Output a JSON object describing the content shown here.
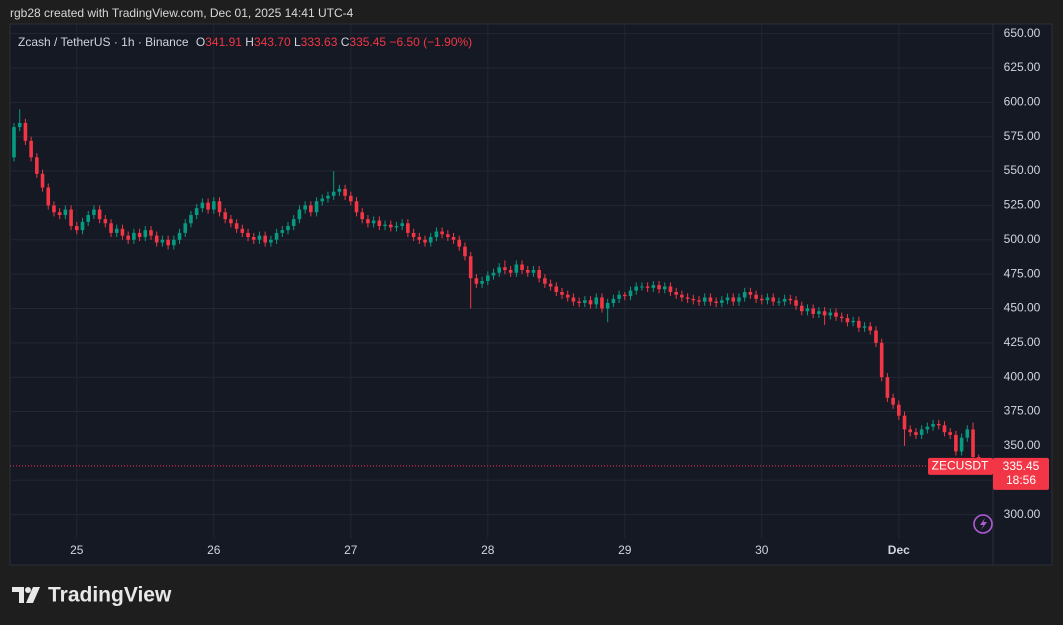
{
  "header": {
    "text": "rgb28 created with TradingView.com, Dec 01, 2025 14:41 UTC-4"
  },
  "chart_data": {
    "type": "candlestick",
    "symbol": "Zcash / TetherUS · 1h · Binance",
    "legend": {
      "o_label": "O",
      "o": "341.91",
      "h_label": "H",
      "h": "343.70",
      "l_label": "L",
      "l": "333.63",
      "c_label": "C",
      "c": "335.45",
      "change": "−6.50 (−1.90%)"
    },
    "ticker": "ZECUSDT",
    "last_price_label": "335.45",
    "countdown": "18:56",
    "up_color": "#089981",
    "down_color": "#f23645",
    "grid": true,
    "ylim": [
      283,
      657
    ],
    "yticks": [
      {
        "value": 300,
        "label": "300.00"
      },
      {
        "value": 325,
        "label": "325.00"
      },
      {
        "value": 350,
        "label": "350.00"
      },
      {
        "value": 375,
        "label": "375.00"
      },
      {
        "value": 400,
        "label": "400.00"
      },
      {
        "value": 425,
        "label": "425.00"
      },
      {
        "value": 450,
        "label": "450.00"
      },
      {
        "value": 475,
        "label": "475.00"
      },
      {
        "value": 500,
        "label": "500.00"
      },
      {
        "value": 525,
        "label": "525.00"
      },
      {
        "value": 550,
        "label": "550.00"
      },
      {
        "value": 575,
        "label": "575.00"
      },
      {
        "value": 600,
        "label": "600.00"
      },
      {
        "value": 625,
        "label": "625.00"
      },
      {
        "value": 650,
        "label": "650.00"
      }
    ],
    "xlim": [
      -0.7,
      171.5
    ],
    "xticks": [
      {
        "value": 11,
        "label": "25"
      },
      {
        "value": 35,
        "label": "26"
      },
      {
        "value": 59,
        "label": "27"
      },
      {
        "value": 83,
        "label": "28"
      },
      {
        "value": 107,
        "label": "29"
      },
      {
        "value": 131,
        "label": "30"
      },
      {
        "value": 155,
        "label": "Dec"
      }
    ],
    "open": [
      560,
      582,
      585,
      572,
      560,
      548,
      538,
      525,
      520,
      518,
      522,
      510,
      507,
      513,
      518,
      522,
      515,
      512,
      505,
      508,
      503,
      500,
      505,
      502,
      507,
      503,
      498,
      500,
      496,
      500,
      505,
      512,
      518,
      523,
      527,
      522,
      528,
      520,
      515,
      512,
      508,
      505,
      502,
      500,
      503,
      498,
      500,
      505,
      507,
      510,
      515,
      522,
      525,
      520,
      528,
      530,
      532,
      535,
      537,
      532,
      528,
      520,
      515,
      512,
      514,
      510,
      511,
      509,
      510,
      512,
      505,
      502,
      500,
      498,
      502,
      506,
      504,
      502,
      500,
      495,
      488,
      472,
      468,
      470,
      474,
      476,
      480,
      478,
      476,
      482,
      478,
      476,
      478,
      472,
      468,
      466,
      462,
      460,
      458,
      455,
      454,
      456,
      453,
      458,
      450,
      454,
      457,
      460,
      459,
      463,
      466,
      466,
      465,
      467,
      464,
      466,
      462,
      460,
      458,
      457,
      456,
      455,
      458,
      455,
      454,
      456,
      458,
      455,
      458,
      462,
      460,
      457,
      456,
      458,
      455,
      455,
      457,
      456,
      452,
      448,
      450,
      446,
      448,
      445,
      447,
      444,
      443,
      440,
      441,
      436,
      437,
      434,
      425,
      400,
      385,
      380,
      372,
      362,
      360,
      358,
      362,
      364,
      366,
      365,
      360,
      358,
      346,
      356,
      362,
      341.91
    ],
    "high": [
      585,
      595,
      588,
      575,
      563,
      551,
      541,
      528,
      523,
      525,
      525,
      513,
      516,
      521,
      525,
      525,
      518,
      515,
      511,
      511,
      506,
      508,
      508,
      510,
      510,
      506,
      503,
      503,
      503,
      508,
      515,
      521,
      526,
      530,
      530,
      531,
      531,
      523,
      518,
      515,
      511,
      508,
      505,
      506,
      506,
      503,
      508,
      510,
      513,
      518,
      525,
      528,
      528,
      531,
      533,
      535,
      550,
      540,
      540,
      535,
      531,
      523,
      518,
      517,
      517,
      514,
      514,
      513,
      515,
      515,
      508,
      505,
      503,
      505,
      509,
      509,
      507,
      505,
      503,
      498,
      491,
      475,
      473,
      477,
      479,
      483,
      485,
      481,
      485,
      485,
      481,
      481,
      481,
      475,
      471,
      469,
      465,
      463,
      461,
      458,
      459,
      459,
      461,
      461,
      457,
      460,
      463,
      462,
      466,
      469,
      469,
      469,
      470,
      470,
      469,
      469,
      465,
      463,
      461,
      460,
      459,
      461,
      461,
      458,
      459,
      461,
      461,
      461,
      465,
      465,
      463,
      460,
      461,
      461,
      458,
      460,
      460,
      459,
      455,
      453,
      453,
      451,
      451,
      450,
      450,
      447,
      446,
      444,
      444,
      440,
      440,
      437,
      428,
      403,
      388,
      383,
      375,
      365,
      363,
      365,
      367,
      369,
      369,
      368,
      363,
      361,
      359,
      365,
      367,
      343.7
    ],
    "low": [
      557,
      579,
      569,
      557,
      545,
      535,
      522,
      517,
      515,
      515,
      507,
      504,
      504,
      510,
      515,
      512,
      509,
      502,
      502,
      500,
      497,
      497,
      499,
      499,
      500,
      495,
      495,
      493,
      493,
      497,
      502,
      509,
      515,
      520,
      519,
      519,
      517,
      512,
      509,
      505,
      502,
      499,
      497,
      497,
      495,
      495,
      497,
      502,
      504,
      507,
      512,
      519,
      517,
      517,
      525,
      527,
      529,
      532,
      529,
      525,
      517,
      512,
      509,
      509,
      507,
      507,
      506,
      506,
      507,
      502,
      499,
      497,
      495,
      495,
      499,
      501,
      499,
      497,
      492,
      485,
      450,
      465,
      465,
      467,
      471,
      473,
      475,
      473,
      473,
      475,
      473,
      473,
      469,
      465,
      463,
      459,
      457,
      455,
      452,
      451,
      451,
      450,
      450,
      447,
      440,
      451,
      454,
      456,
      456,
      460,
      463,
      462,
      462,
      461,
      461,
      459,
      457,
      455,
      454,
      453,
      452,
      452,
      452,
      451,
      451,
      453,
      452,
      452,
      455,
      457,
      454,
      453,
      453,
      452,
      452,
      452,
      453,
      449,
      445,
      445,
      443,
      443,
      438,
      442,
      441,
      440,
      437,
      437,
      433,
      433,
      431,
      422,
      397,
      382,
      377,
      369,
      350,
      357,
      355,
      355,
      359,
      361,
      362,
      357,
      355,
      343,
      343,
      353,
      339,
      333.63
    ],
    "close": [
      582,
      585,
      572,
      560,
      548,
      538,
      525,
      520,
      518,
      522,
      510,
      507,
      513,
      518,
      522,
      515,
      512,
      505,
      508,
      503,
      500,
      505,
      502,
      507,
      503,
      498,
      500,
      496,
      500,
      505,
      512,
      518,
      523,
      527,
      522,
      528,
      520,
      515,
      512,
      508,
      505,
      502,
      500,
      503,
      498,
      500,
      505,
      507,
      510,
      515,
      522,
      525,
      520,
      528,
      530,
      532,
      535,
      537,
      532,
      528,
      520,
      515,
      512,
      514,
      510,
      511,
      509,
      510,
      512,
      505,
      502,
      500,
      498,
      502,
      506,
      504,
      502,
      500,
      495,
      488,
      472,
      468,
      470,
      474,
      476,
      480,
      478,
      476,
      482,
      478,
      476,
      478,
      472,
      468,
      466,
      462,
      460,
      458,
      455,
      454,
      456,
      453,
      458,
      450,
      454,
      457,
      460,
      459,
      463,
      466,
      466,
      465,
      467,
      464,
      466,
      462,
      460,
      458,
      457,
      456,
      455,
      458,
      455,
      454,
      456,
      458,
      455,
      458,
      462,
      460,
      457,
      456,
      458,
      455,
      455,
      457,
      456,
      452,
      448,
      450,
      446,
      448,
      445,
      447,
      444,
      443,
      440,
      441,
      436,
      437,
      434,
      425,
      400,
      385,
      380,
      372,
      362,
      360,
      358,
      362,
      364,
      366,
      365,
      360,
      358,
      346,
      356,
      362,
      341.91,
      335.45
    ]
  },
  "footer": {
    "brand": "TradingView"
  }
}
